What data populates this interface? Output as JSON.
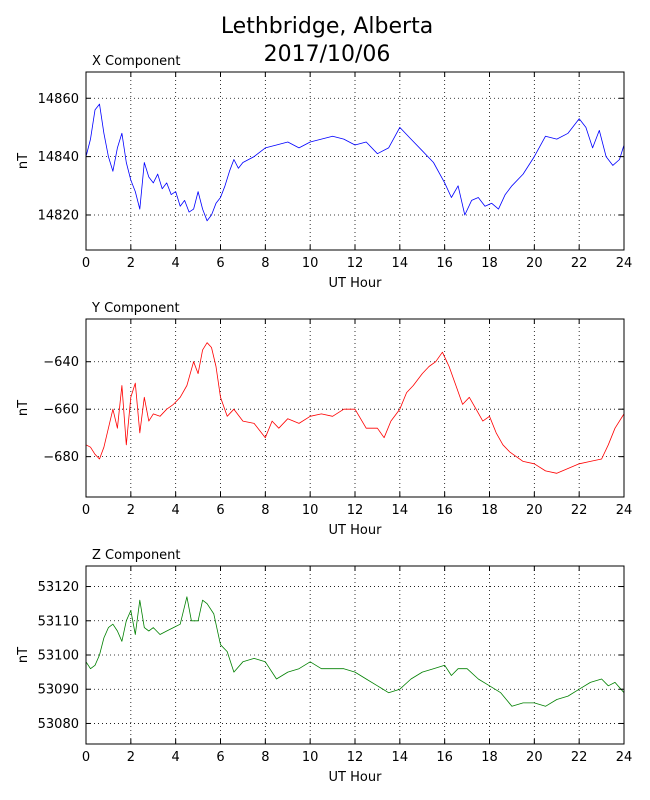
{
  "title_line1": "Lethbridge, Alberta",
  "title_line2": "2017/10/06",
  "chart_data": [
    {
      "type": "line",
      "title": "X Component",
      "xlabel": "UT Hour",
      "ylabel": "nT",
      "color": "#0000ff",
      "xlim": [
        0,
        24
      ],
      "ylim": [
        14808,
        14869
      ],
      "xticks": [
        0,
        2,
        4,
        6,
        8,
        10,
        12,
        14,
        16,
        18,
        20,
        22,
        24
      ],
      "yticks": [
        14820,
        14840,
        14860
      ],
      "grid": true,
      "x": [
        0,
        0.2,
        0.4,
        0.6,
        0.8,
        1.0,
        1.2,
        1.4,
        1.6,
        1.8,
        2.0,
        2.2,
        2.4,
        2.6,
        2.8,
        3.0,
        3.2,
        3.4,
        3.6,
        3.8,
        4.0,
        4.2,
        4.4,
        4.6,
        4.8,
        5.0,
        5.2,
        5.4,
        5.6,
        5.8,
        6.0,
        6.2,
        6.4,
        6.6,
        6.8,
        7.0,
        7.5,
        8.0,
        8.5,
        9.0,
        9.5,
        10.0,
        10.5,
        11.0,
        11.5,
        12.0,
        12.5,
        13.0,
        13.5,
        14.0,
        14.5,
        15.0,
        15.5,
        16.0,
        16.3,
        16.6,
        16.9,
        17.2,
        17.5,
        17.8,
        18.1,
        18.4,
        18.7,
        19.0,
        19.5,
        20.0,
        20.5,
        21.0,
        21.5,
        22.0,
        22.3,
        22.6,
        22.9,
        23.2,
        23.5,
        23.8,
        24.0
      ],
      "values": [
        14840,
        14846,
        14856,
        14858,
        14848,
        14840,
        14835,
        14843,
        14848,
        14838,
        14832,
        14828,
        14822,
        14838,
        14833,
        14831,
        14834,
        14829,
        14831,
        14827,
        14828,
        14823,
        14825,
        14821,
        14822,
        14828,
        14822,
        14818,
        14820,
        14824,
        14826,
        14830,
        14835,
        14839,
        14836,
        14838,
        14840,
        14843,
        14844,
        14845,
        14843,
        14845,
        14846,
        14847,
        14846,
        14844,
        14845,
        14841,
        14843,
        14850,
        14846,
        14842,
        14838,
        14831,
        14826,
        14830,
        14820,
        14825,
        14826,
        14823,
        14824,
        14822,
        14827,
        14830,
        14834,
        14840,
        14847,
        14846,
        14848,
        14853,
        14850,
        14843,
        14849,
        14840,
        14837,
        14839,
        14844
      ]
    },
    {
      "type": "line",
      "title": "Y Component",
      "xlabel": "UT Hour",
      "ylabel": "nT",
      "color": "#ff0000",
      "xlim": [
        0,
        24
      ],
      "ylim": [
        -697,
        -622
      ],
      "xticks": [
        0,
        2,
        4,
        6,
        8,
        10,
        12,
        14,
        16,
        18,
        20,
        22,
        24
      ],
      "yticks": [
        -680,
        -660,
        -640
      ],
      "grid": true,
      "x": [
        0,
        0.2,
        0.4,
        0.6,
        0.8,
        1.0,
        1.2,
        1.4,
        1.6,
        1.8,
        2.0,
        2.2,
        2.4,
        2.6,
        2.8,
        3.0,
        3.3,
        3.6,
        3.9,
        4.2,
        4.5,
        4.8,
        5.0,
        5.2,
        5.4,
        5.6,
        5.8,
        6.0,
        6.3,
        6.6,
        7.0,
        7.5,
        8.0,
        8.3,
        8.6,
        9.0,
        9.5,
        10.0,
        10.5,
        11.0,
        11.5,
        12.0,
        12.5,
        13.0,
        13.3,
        13.6,
        14.0,
        14.3,
        14.6,
        15.0,
        15.3,
        15.6,
        15.9,
        16.2,
        16.5,
        16.8,
        17.1,
        17.4,
        17.7,
        18.0,
        18.3,
        18.6,
        18.9,
        19.2,
        19.5,
        20.0,
        20.5,
        21.0,
        21.5,
        22.0,
        22.5,
        23.0,
        23.3,
        23.6,
        24.0
      ],
      "values": [
        -675,
        -676,
        -679,
        -681,
        -676,
        -668,
        -660,
        -668,
        -650,
        -675,
        -655,
        -649,
        -670,
        -655,
        -665,
        -662,
        -663,
        -660,
        -658,
        -655,
        -650,
        -640,
        -645,
        -635,
        -632,
        -634,
        -642,
        -655,
        -663,
        -660,
        -665,
        -666,
        -672,
        -665,
        -668,
        -664,
        -666,
        -663,
        -662,
        -663,
        -660,
        -660,
        -668,
        -668,
        -672,
        -665,
        -660,
        -653,
        -650,
        -645,
        -642,
        -640,
        -636,
        -642,
        -650,
        -658,
        -655,
        -660,
        -665,
        -663,
        -670,
        -675,
        -678,
        -680,
        -682,
        -683,
        -686,
        -687,
        -685,
        -683,
        -682,
        -681,
        -675,
        -668,
        -662
      ]
    },
    {
      "type": "line",
      "title": "Z Component",
      "xlabel": "UT Hour",
      "ylabel": "nT",
      "color": "#008000",
      "xlim": [
        0,
        24
      ],
      "ylim": [
        53074,
        53126
      ],
      "xticks": [
        0,
        2,
        4,
        6,
        8,
        10,
        12,
        14,
        16,
        18,
        20,
        22,
        24
      ],
      "yticks": [
        53080,
        53090,
        53100,
        53110,
        53120
      ],
      "grid": true,
      "x": [
        0,
        0.2,
        0.4,
        0.6,
        0.8,
        1.0,
        1.2,
        1.4,
        1.6,
        1.8,
        2.0,
        2.2,
        2.4,
        2.6,
        2.8,
        3.0,
        3.3,
        3.6,
        3.9,
        4.2,
        4.5,
        4.7,
        5.0,
        5.2,
        5.4,
        5.7,
        6.0,
        6.3,
        6.6,
        7.0,
        7.5,
        8.0,
        8.5,
        9.0,
        9.5,
        10.0,
        10.5,
        11.0,
        11.5,
        12.0,
        12.5,
        13.0,
        13.5,
        14.0,
        14.5,
        15.0,
        15.5,
        16.0,
        16.3,
        16.6,
        17.0,
        17.5,
        18.0,
        18.5,
        19.0,
        19.5,
        20.0,
        20.5,
        21.0,
        21.5,
        22.0,
        22.5,
        23.0,
        23.3,
        23.6,
        24.0
      ],
      "values": [
        53098,
        53096,
        53097,
        53100,
        53105,
        53108,
        53109,
        53107,
        53104,
        53110,
        53113,
        53106,
        53116,
        53108,
        53107,
        53108,
        53106,
        53107,
        53108,
        53109,
        53117,
        53110,
        53110,
        53116,
        53115,
        53112,
        53103,
        53101,
        53095,
        53098,
        53099,
        53098,
        53093,
        53095,
        53096,
        53098,
        53096,
        53096,
        53096,
        53095,
        53093,
        53091,
        53089,
        53090,
        53093,
        53095,
        53096,
        53097,
        53094,
        53096,
        53096,
        53093,
        53091,
        53089,
        53085,
        53086,
        53086,
        53085,
        53087,
        53088,
        53090,
        53092,
        53093,
        53091,
        53092,
        53089
      ]
    }
  ]
}
